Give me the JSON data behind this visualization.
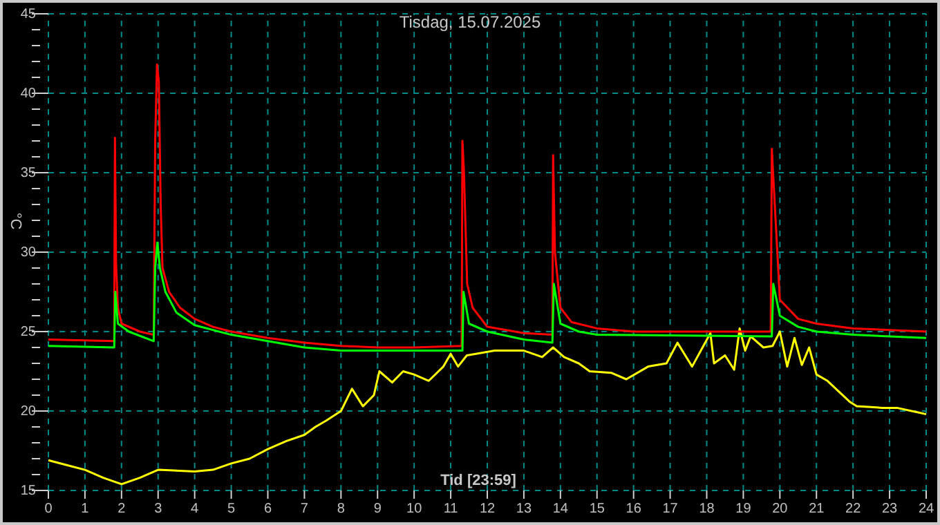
{
  "chart_data": {
    "type": "line",
    "title": "Tisdag, 15.07.2025",
    "xlabel": "Tid [23:59]",
    "ylabel": "°C",
    "xlim": [
      0,
      24
    ],
    "xticks": [
      0,
      1,
      2,
      3,
      4,
      5,
      6,
      7,
      8,
      9,
      10,
      11,
      12,
      13,
      14,
      15,
      16,
      17,
      18,
      19,
      20,
      21,
      22,
      23,
      24
    ],
    "ylim": [
      15,
      45
    ],
    "yticks": [
      15,
      {
        "value": 16,
        "label": null
      },
      {
        "value": 17,
        "label": null
      },
      {
        "value": 18,
        "label": null
      },
      {
        "value": 19,
        "label": null
      },
      20,
      {
        "value": 21,
        "label": null
      },
      {
        "value": 22,
        "label": null
      },
      {
        "value": 23,
        "label": null
      },
      {
        "value": 24,
        "label": null
      },
      25,
      {
        "value": 26,
        "label": null
      },
      {
        "value": 27,
        "label": null
      },
      {
        "value": 28,
        "label": null
      },
      {
        "value": 29,
        "label": null
      },
      30,
      {
        "value": 31,
        "label": null
      },
      {
        "value": 32,
        "label": null
      },
      {
        "value": 33,
        "label": null
      },
      {
        "value": 34,
        "label": null
      },
      35,
      {
        "value": 36,
        "label": null
      },
      {
        "value": 37,
        "label": null
      },
      {
        "value": 38,
        "label": null
      },
      {
        "value": 39,
        "label": null
      },
      40,
      {
        "value": 41,
        "label": null
      },
      {
        "value": 42,
        "label": null
      },
      {
        "value": 43,
        "label": null
      },
      {
        "value": 44,
        "label": null
      },
      45
    ],
    "grid": true,
    "marker": "none",
    "line_style": "solid",
    "series": [
      {
        "color": "#ffff00",
        "x": [
          0,
          0.5,
          1,
          1.5,
          2,
          2.5,
          3,
          4,
          4.5,
          5,
          5.5,
          6,
          6.5,
          7,
          7.3,
          7.6,
          8,
          8.3,
          8.6,
          8.9,
          9.05,
          9.4,
          9.7,
          10,
          10.4,
          10.8,
          11,
          11.2,
          11.44,
          12.2,
          13,
          13.5,
          13.8,
          14.1,
          14.5,
          14.8,
          15.4,
          15.8,
          16.4,
          16.9,
          17.2,
          17.6,
          18.1,
          18.2,
          18.5,
          18.75,
          18.9,
          19.05,
          19.2,
          19.55,
          19.8,
          20,
          20.2,
          20.4,
          20.6,
          20.8,
          21,
          21.3,
          21.9,
          22.1,
          22.8,
          23.2,
          23.8,
          24
        ],
        "values": [
          16.9,
          16.6,
          16.3,
          15.8,
          15.4,
          15.8,
          16.3,
          16.2,
          16.3,
          16.7,
          17,
          17.6,
          18.1,
          18.5,
          19,
          19.4,
          20,
          21.4,
          20.3,
          21,
          22.5,
          21.8,
          22.5,
          22.3,
          21.9,
          22.8,
          23.6,
          22.8,
          23.5,
          23.8,
          23.8,
          23.4,
          24,
          23.4,
          23,
          22.5,
          22.4,
          22,
          22.8,
          23,
          24.3,
          22.8,
          24.9,
          23,
          23.5,
          22.6,
          25.2,
          23.8,
          24.7,
          24,
          24.1,
          25,
          22.8,
          24.6,
          22.9,
          24,
          22.3,
          21.9,
          20.6,
          20.3,
          20.2,
          20.2,
          19.9,
          19.8
        ]
      },
      {
        "color": "#ff0000",
        "x": [
          0,
          1.8,
          1.82,
          1.85,
          1.9,
          2,
          2.5,
          2.88,
          2.92,
          2.97,
          3.02,
          3.07,
          3.12,
          3.3,
          3.6,
          4,
          4.5,
          5,
          6,
          7,
          8,
          9,
          10,
          11.3,
          11.32,
          11.36,
          11.45,
          11.6,
          12,
          13,
          13.78,
          13.8,
          13.85,
          14,
          14.3,
          15,
          16,
          19.75,
          19.78,
          19.83,
          20,
          20.5,
          21,
          22,
          24
        ],
        "values": [
          24.5,
          24.4,
          37.2,
          29.3,
          26.5,
          25.5,
          25,
          24.8,
          37,
          41.8,
          40.7,
          33,
          29,
          27.5,
          26.5,
          25.8,
          25.3,
          25,
          24.6,
          24.3,
          24.1,
          24,
          24,
          24.1,
          37,
          35.2,
          28,
          26.5,
          25.3,
          24.9,
          24.8,
          36.1,
          30,
          26.5,
          25.6,
          25.2,
          25,
          25,
          36.5,
          34.3,
          27,
          25.8,
          25.5,
          25.2,
          25
        ]
      },
      {
        "color": "#00ff00",
        "x": [
          0,
          1.8,
          1.83,
          1.9,
          2.2,
          2.88,
          2.92,
          2.98,
          3.05,
          3.2,
          3.5,
          4,
          5,
          6,
          7,
          8,
          11.32,
          11.35,
          11.5,
          12,
          13,
          13.78,
          13.82,
          14,
          14.5,
          15,
          19.78,
          19.82,
          20,
          20.5,
          21,
          22,
          24
        ],
        "values": [
          24.1,
          24,
          27.5,
          25.5,
          25,
          24.4,
          29,
          30.6,
          29,
          27.5,
          26.2,
          25.4,
          24.8,
          24.4,
          24,
          23.8,
          23.8,
          27.5,
          25.5,
          25,
          24.5,
          24.3,
          28,
          25.5,
          25,
          24.8,
          24.7,
          28,
          26,
          25.3,
          25,
          24.8,
          24.6
        ]
      }
    ]
  }
}
